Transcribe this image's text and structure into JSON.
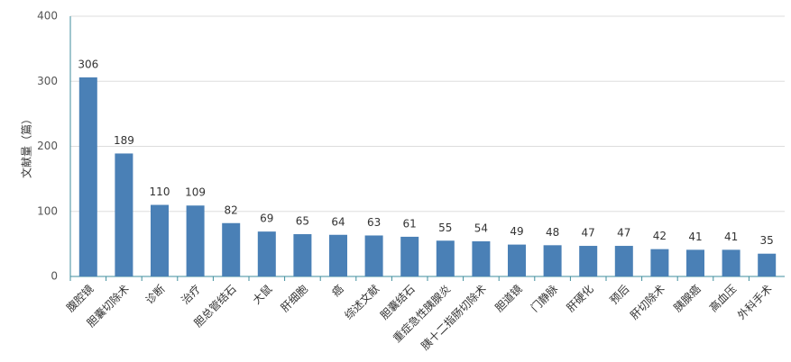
{
  "chart_data": {
    "type": "bar",
    "ylabel": "文献量（篇）",
    "categories": [
      "腹腔镜",
      "胆囊切除术",
      "诊断",
      "治疗",
      "胆总管结石",
      "大鼠",
      "肝细胞",
      "癌",
      "综述文献",
      "胆囊结石",
      "重症急性胰腺炎",
      "胰十二指肠切除术",
      "胆道镜",
      "门静脉",
      "肝硬化",
      "预后",
      "肝切除术",
      "胰腺癌",
      "高血压",
      "外科手术"
    ],
    "values": [
      306,
      189,
      110,
      109,
      82,
      69,
      65,
      64,
      63,
      61,
      55,
      54,
      49,
      48,
      47,
      47,
      42,
      41,
      41,
      35
    ],
    "color": "#4a80b6",
    "ylim": [
      0,
      400
    ],
    "yticks": [
      0,
      100,
      200,
      300,
      400
    ],
    "grid": true
  }
}
